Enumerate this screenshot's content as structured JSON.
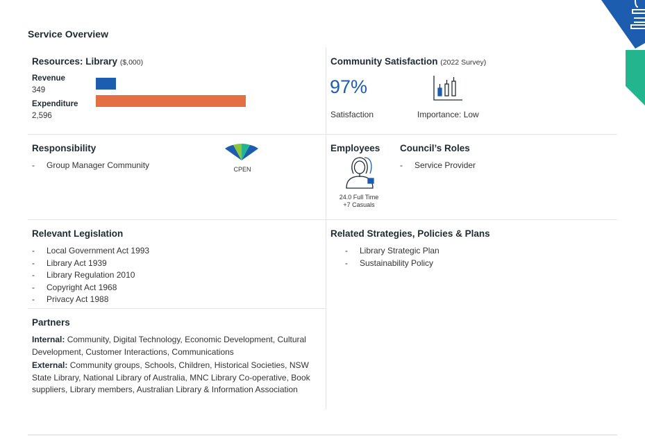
{
  "page_title": "Service Overview",
  "resources": {
    "title": "Resources: Library",
    "unit": "($,000)",
    "items": [
      {
        "label": "Revenue",
        "value": "349",
        "amount": 349
      },
      {
        "label": "Expenditure",
        "value": "2,596",
        "amount": 2596
      }
    ],
    "colors": {
      "revenue": "#1c5db0",
      "expenditure": "#e36f42"
    }
  },
  "satisfaction": {
    "title": "Community Satisfaction",
    "survey": "(2022 Survey)",
    "percent": "97%",
    "percent_label": "Satisfaction",
    "importance": "Importance: Low",
    "icon": "importance-chart-icon"
  },
  "responsibility": {
    "title": "Responsibility",
    "items": [
      "Group Manager Community"
    ],
    "badge": "CPEN",
    "icon": "cpen-fan-icon"
  },
  "employees": {
    "title": "Employees",
    "full_time": "24.0 Full Time",
    "casuals": "+7 Casuals",
    "icon": "employee-icon"
  },
  "roles": {
    "title": "Council’s Roles",
    "items": [
      "Service Provider"
    ]
  },
  "legislation": {
    "title": "Relevant Legislation",
    "items": [
      "Local Government Act 1993",
      "Library Act 1939",
      "Library Regulation 2010",
      "Copyright Act 1968",
      "Privacy Act 1988"
    ]
  },
  "strategies": {
    "title": "Related Strategies, Policies & Plans",
    "items": [
      "Library Strategic Plan",
      "Sustainability Policy"
    ]
  },
  "partners": {
    "title": "Partners",
    "internal_label": "Internal:",
    "internal_text": "Community, Digital Technology, Economic Development, Cultural Development, Customer Interactions, Communications",
    "external_label": "External:",
    "external_text": "Community groups, Schools, Children, Historical Societies, NSW State Library, National Library of Australia, MNC Library Co-operative, Book suppliers, Library members, Australian Library & Information Association"
  },
  "dash": "-",
  "brand_colors": {
    "blue": "#1c5db0",
    "teal": "#22b58e",
    "green": "#8cc63f"
  }
}
